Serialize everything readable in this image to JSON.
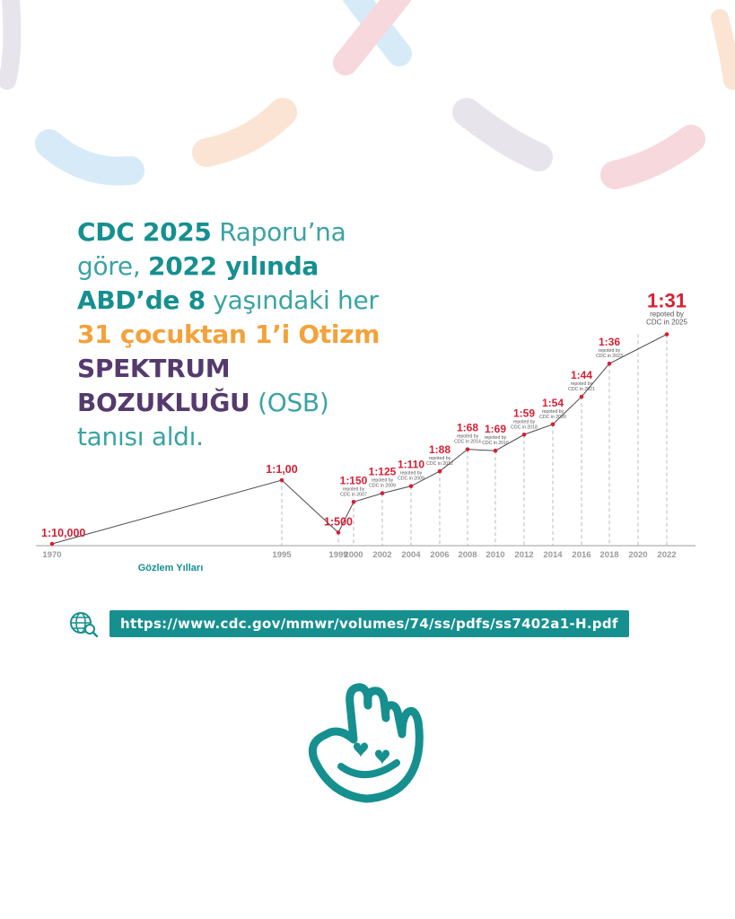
{
  "headline": {
    "line1_bold": "CDC 2025",
    "line1_rest": " Raporu’na",
    "line2_pre": "göre, ",
    "line2_bold": "2022 yılında",
    "line3_bold": "ABD’de 8",
    "line3_rest": " yaşındaki her",
    "line4": "31 çocuktan 1’i Otizm",
    "line5": "SPEKTRUM",
    "line6_bold": "BOZUKLUĞU",
    "line6_rest": " (OSB)",
    "line7": "tanısı aldı."
  },
  "colors": {
    "teal": "#168f8f",
    "orange": "#f3a23a",
    "purple": "#553a6e",
    "red": "#d71f33",
    "grey": "#9a9a9a"
  },
  "chart_data": {
    "type": "line",
    "xlabel": "Gözlem Yılları",
    "x": [
      "1970",
      "1995",
      "1999",
      "2000",
      "2002",
      "2004",
      "2006",
      "2008",
      "2010",
      "2012",
      "2014",
      "2016",
      "2018",
      "2020",
      "2022"
    ],
    "labels": [
      "1:10,000",
      "1:1,00",
      "1:500",
      "1:150",
      "1:125",
      "1:110",
      "1:88",
      "1:68",
      "1:69",
      "1:59",
      "1:54",
      "1:44",
      "1:36",
      "1:31",
      ""
    ],
    "sublabels": [
      "",
      "",
      "",
      "repoted by CDC in 2007",
      "repoted by CDC in 2009",
      "repoted by CDC in 2009",
      "repoted by CDC in 2012",
      "repoted by CDC in 2014",
      "repoted by CDC in 2016",
      "repoted by CDC in 2018",
      "repoted by CDC in 2020",
      "repoted by CDC in 2021",
      "repoted by CDC in 2023",
      "repoted by CDC in 2025",
      ""
    ],
    "values": [
      0.0001,
      0.01,
      0.002,
      0.00667,
      0.008,
      0.00909,
      0.01136,
      0.01471,
      0.01449,
      0.01695,
      0.01852,
      0.02273,
      0.02778,
      0.03226,
      0.03226
    ],
    "grid": false,
    "legend": "none"
  },
  "source": {
    "url": "https://www.cdc.gov/mmwr/volumes/74/ss/pdfs/ss7402a1-H.pdf"
  },
  "icons": {
    "globe": "globe-search-icon",
    "logo": "hand-heart-logo"
  }
}
